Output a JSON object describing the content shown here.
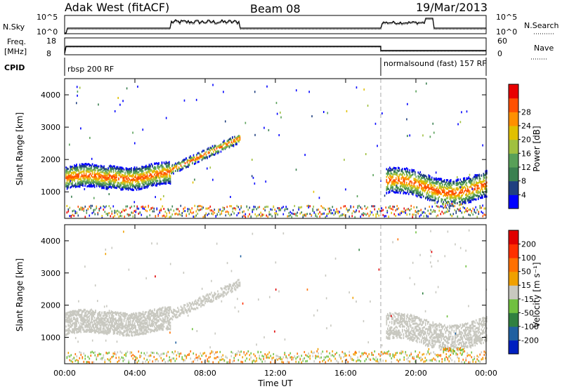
{
  "header": {
    "station": "Adak West (fitACF)",
    "beam": "Beam 08",
    "date": "19/Mar/2013"
  },
  "top_panels": {
    "nsky_label": "N.Sky",
    "nsky_ticks": [
      "10^5",
      "10^0"
    ],
    "nsearch_label": "N.Search",
    "nsearch_ticks": [
      "10^5",
      "10^0"
    ],
    "freq_label": "Freq.",
    "freq_unit": "[MHz]",
    "freq_ticks": [
      "18",
      "8"
    ],
    "nave_label": "Nave",
    "nave_ticks": [
      "60",
      "0"
    ],
    "cpid_label": "CPID",
    "cpid_segments": [
      {
        "start_hour": 0,
        "end_hour": 18.0,
        "label": "rbsp 200 RF"
      },
      {
        "start_hour": 18.0,
        "end_hour": 24,
        "label": "normalsound (fast) 157 RF"
      }
    ]
  },
  "chart_data": [
    {
      "type": "heatmap",
      "panel": "power",
      "ylabel": "Slant Range [km]",
      "y_ticks": [
        "1000",
        "2000",
        "3000",
        "4000"
      ],
      "ylim": [
        180,
        4500
      ],
      "x_ticks": [
        "00:00",
        "04:00",
        "08:00",
        "12:00",
        "16:00",
        "20:00",
        "00:00"
      ],
      "xlim_hours": [
        0,
        24
      ],
      "colorbar": {
        "label": "Power [dB]",
        "ticks": [
          "4",
          "8",
          "12",
          "16",
          "20",
          "24",
          "28"
        ],
        "colors": [
          "#0000ff",
          "#204080",
          "#3a8050",
          "#58a058",
          "#a0c040",
          "#e0c000",
          "#ff9000",
          "#ff5000",
          "#e80000"
        ],
        "range": [
          0,
          30
        ]
      },
      "mode_change_hour": 18.0
    },
    {
      "type": "heatmap",
      "panel": "velocity",
      "ylabel": "Slant Range [km]",
      "y_ticks": [
        "1000",
        "2000",
        "3000",
        "4000"
      ],
      "ylim": [
        180,
        4500
      ],
      "x_ticks": [
        "00:00",
        "04:00",
        "08:00",
        "12:00",
        "16:00",
        "20:00",
        "00:00"
      ],
      "xlim_hours": [
        0,
        24
      ],
      "xlabel": "Time UT",
      "colorbar": {
        "label": "Velocity [m s⁻¹]",
        "ticks": [
          "200",
          "100",
          "50",
          "15",
          "-15",
          "-50",
          "-100",
          "-200"
        ],
        "colors": [
          "#0020c0",
          "#2060a0",
          "#308040",
          "#70c040",
          "#c8c8c0",
          "#f0a000",
          "#ff7000",
          "#ff3000",
          "#e00000"
        ]
      },
      "mode_change_hour": 18.0
    }
  ]
}
